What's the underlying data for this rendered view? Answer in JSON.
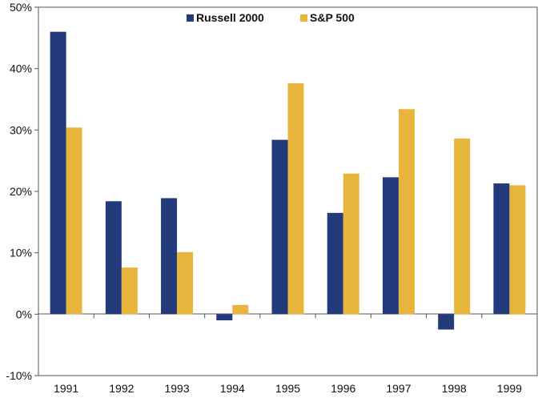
{
  "chart_data": {
    "type": "bar",
    "categories": [
      "1991",
      "1992",
      "1993",
      "1994",
      "1995",
      "1996",
      "1997",
      "1998",
      "1999"
    ],
    "series": [
      {
        "name": "Russell 2000",
        "color": "#233B7A",
        "values": [
          46.0,
          18.4,
          18.9,
          -1.0,
          28.4,
          16.5,
          22.3,
          -2.5,
          21.3
        ]
      },
      {
        "name": "S&P 500",
        "color": "#E8B53C",
        "values": [
          30.4,
          7.6,
          10.1,
          1.5,
          37.6,
          22.9,
          33.4,
          28.6,
          21.0
        ]
      }
    ],
    "y_ticks": [
      "50%",
      "40%",
      "30%",
      "20%",
      "10%",
      "0%",
      "-10%"
    ],
    "ylim": [
      -10,
      50
    ],
    "title": "",
    "xlabel": "",
    "ylabel": "",
    "grid": false,
    "legend_position": "top-center"
  }
}
